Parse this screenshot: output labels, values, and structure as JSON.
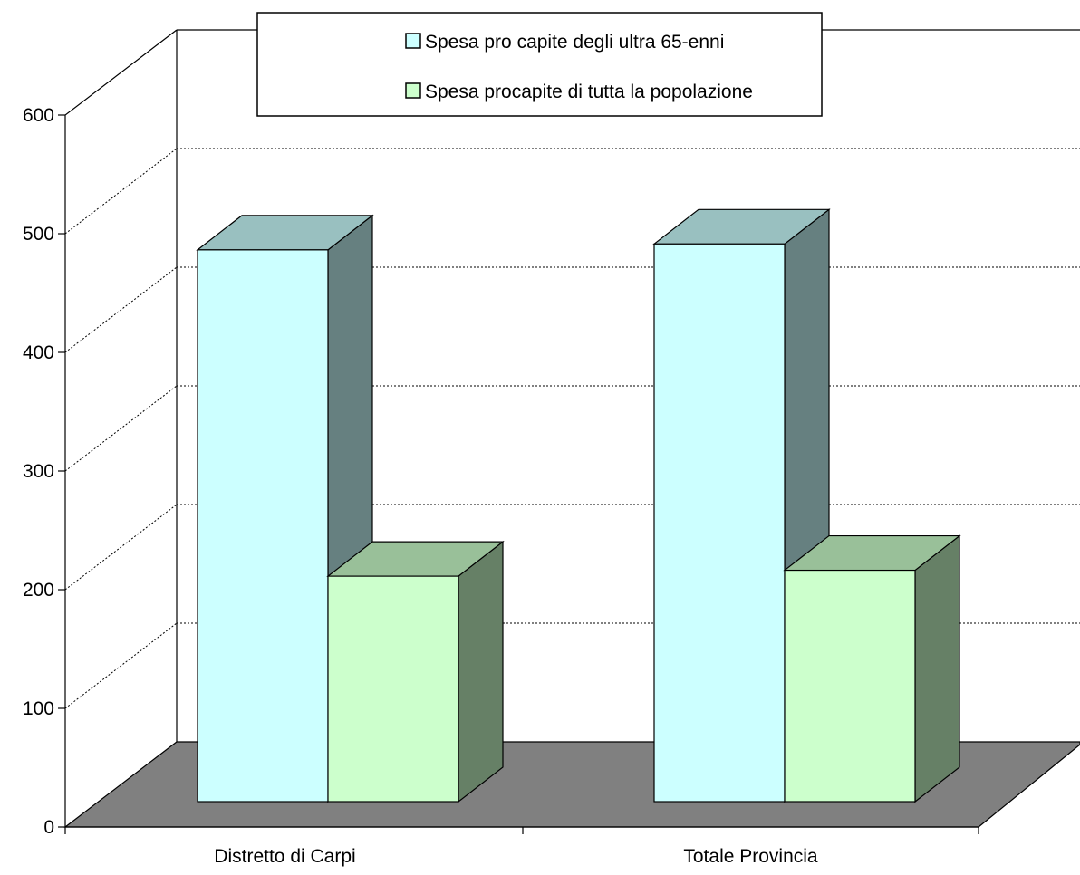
{
  "chart_data": {
    "type": "bar",
    "categories": [
      "Distretto di Carpi",
      "Totale Provincia"
    ],
    "series": [
      {
        "name": "Spesa pro capite degli ultra 65-enni",
        "values": [
          465,
          470
        ]
      },
      {
        "name": "Spesa procapite di tutta la popolazione",
        "values": [
          190,
          195
        ]
      }
    ],
    "y_ticks": [
      "0",
      "100",
      "200",
      "300",
      "400",
      "500",
      "600"
    ],
    "ylim": [
      0,
      600
    ],
    "grid": true,
    "legend": "top-center",
    "colors": {
      "series_front": [
        "#ccffff",
        "#ccffcc"
      ],
      "series_top": [
        "#99c0c0",
        "#99c099"
      ],
      "series_side": [
        "#668080",
        "#668066"
      ],
      "floor": "#808080",
      "walls": "#ffffff"
    }
  }
}
